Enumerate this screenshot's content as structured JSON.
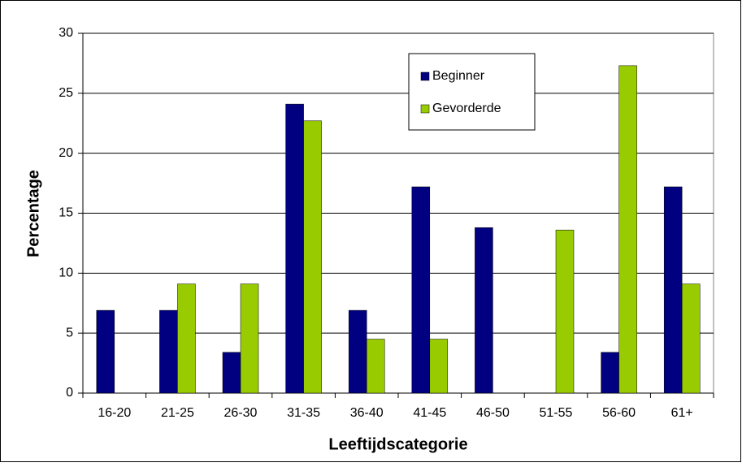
{
  "chart_data": {
    "type": "bar",
    "x_label": "Leeftijdscategorie",
    "y_label": "Percentage",
    "categories": [
      "16-20",
      "21-25",
      "26-30",
      "31-35",
      "36-40",
      "41-45",
      "46-50",
      "51-55",
      "56-60",
      "61+"
    ],
    "series": [
      {
        "name": "Beginner",
        "color": "#000080",
        "values": [
          6.9,
          6.9,
          3.4,
          24.1,
          6.9,
          17.2,
          13.8,
          0,
          3.4,
          17.2
        ]
      },
      {
        "name": "Gevorderde",
        "color": "#99cc00",
        "values": [
          0,
          9.1,
          9.1,
          22.7,
          4.5,
          4.5,
          0,
          13.6,
          27.3,
          9.1
        ]
      }
    ],
    "ylim": [
      0,
      30
    ],
    "yticks": [
      0,
      5,
      10,
      15,
      20,
      25,
      30
    ],
    "grid": true,
    "legend_position": "top"
  }
}
